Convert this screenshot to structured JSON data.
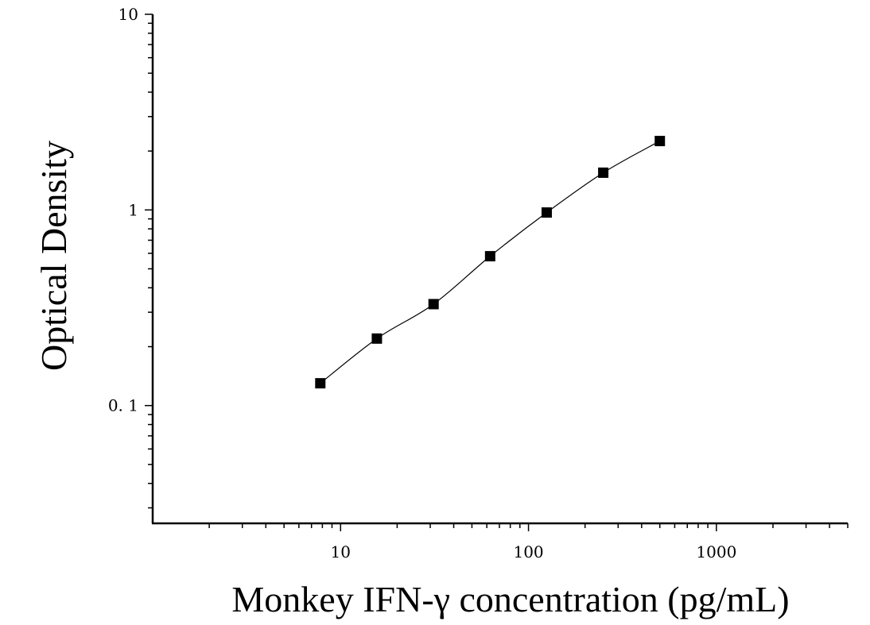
{
  "chart_data": {
    "type": "scatter",
    "xlabel": "Monkey IFN-γ concentration (pg/mL)",
    "ylabel": "Optical Density",
    "xscale": "log",
    "yscale": "log",
    "xlim": [
      1,
      5000
    ],
    "ylim": [
      0.025,
      10
    ],
    "x_ticks": [
      10,
      100,
      1000
    ],
    "x_tick_labels": [
      "10",
      "100",
      "1000"
    ],
    "y_ticks": [
      0.1,
      1,
      10
    ],
    "y_tick_labels": [
      "0. 1",
      "1",
      "10"
    ],
    "grid": false,
    "legend": "none",
    "fit_line": true,
    "marker": "square",
    "marker_color": "#000000",
    "line_color": "#000000",
    "points": [
      {
        "x": 7.8,
        "y": 0.13
      },
      {
        "x": 15.6,
        "y": 0.22
      },
      {
        "x": 31.25,
        "y": 0.33
      },
      {
        "x": 62.5,
        "y": 0.58
      },
      {
        "x": 125,
        "y": 0.97
      },
      {
        "x": 250,
        "y": 1.55
      },
      {
        "x": 500,
        "y": 2.25
      }
    ]
  }
}
